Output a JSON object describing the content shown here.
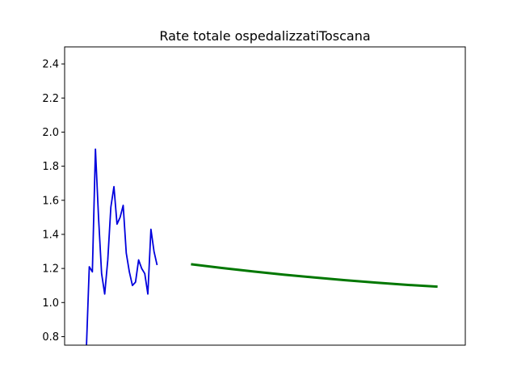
{
  "chart_data": {
    "type": "line",
    "title": "Rate totale ospedalizzatiToscana",
    "xlabel": "",
    "ylabel": "",
    "ylim": [
      0.75,
      2.5
    ],
    "xlim": [
      -7,
      123
    ],
    "yticks": [
      0.8,
      1.0,
      1.2,
      1.4,
      1.6,
      1.8,
      2.0,
      2.2,
      2.4
    ],
    "ytick_labels": [
      "0.8",
      "1.0",
      "1.2",
      "1.4",
      "1.6",
      "1.8",
      "2.0",
      "2.2",
      "2.4"
    ],
    "grid": false,
    "series": [
      {
        "color": "#0000dd",
        "x": [
          0,
          1,
          2,
          3,
          4,
          5,
          6,
          7,
          8,
          9,
          10,
          11,
          12,
          13,
          14,
          15,
          16,
          17,
          18,
          19,
          20,
          21,
          22,
          23,
          24,
          25,
          26,
          27,
          28,
          29,
          30,
          31,
          32
        ],
        "values": [
          0.7,
          1.21,
          1.18,
          1.9,
          1.5,
          1.17,
          1.05,
          1.25,
          1.56,
          1.68,
          1.46,
          1.5,
          1.57,
          1.29,
          1.18,
          1.1,
          1.12,
          1.25,
          1.2,
          1.17,
          1.05,
          1.43,
          1.3,
          1.22,
          null,
          null,
          null,
          null,
          null,
          null,
          null,
          null,
          null
        ]
      },
      {
        "color": "#007700",
        "x": [
          34,
          44,
          54,
          64,
          74,
          84,
          94,
          104,
          114
        ],
        "values": [
          1.225,
          1.203,
          1.183,
          1.164,
          1.147,
          1.131,
          1.117,
          1.104,
          1.093
        ]
      }
    ]
  }
}
